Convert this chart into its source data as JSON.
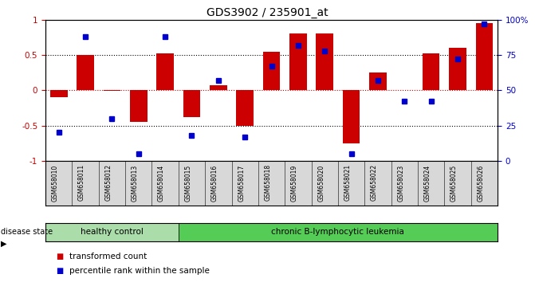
{
  "title": "GDS3902 / 235901_at",
  "samples": [
    "GSM658010",
    "GSM658011",
    "GSM658012",
    "GSM658013",
    "GSM658014",
    "GSM658015",
    "GSM658016",
    "GSM658017",
    "GSM658018",
    "GSM658019",
    "GSM658020",
    "GSM658021",
    "GSM658022",
    "GSM658023",
    "GSM658024",
    "GSM658025",
    "GSM658026"
  ],
  "bar_values": [
    -0.1,
    0.5,
    -0.01,
    -0.45,
    0.52,
    -0.38,
    0.07,
    -0.5,
    0.55,
    0.8,
    0.8,
    -0.75,
    0.25,
    0.0,
    0.52,
    0.6,
    0.95
  ],
  "percentile_values": [
    20,
    88,
    30,
    5,
    88,
    18,
    57,
    17,
    67,
    82,
    78,
    5,
    57,
    42,
    42,
    72,
    97
  ],
  "bar_color": "#cc0000",
  "dot_color": "#0000cc",
  "healthy_count": 5,
  "healthy_label": "healthy control",
  "disease_label": "chronic B-lymphocytic leukemia",
  "healthy_color": "#aaddaa",
  "disease_color": "#55cc55",
  "group_label": "disease state",
  "ylim": [
    -1,
    1
  ],
  "yticks_left": [
    -1,
    -0.5,
    0,
    0.5,
    1
  ],
  "yticks_right": [
    0,
    25,
    50,
    75,
    100
  ],
  "legend_bar_label": "transformed count",
  "legend_dot_label": "percentile rank within the sample",
  "background_color": "#ffffff"
}
